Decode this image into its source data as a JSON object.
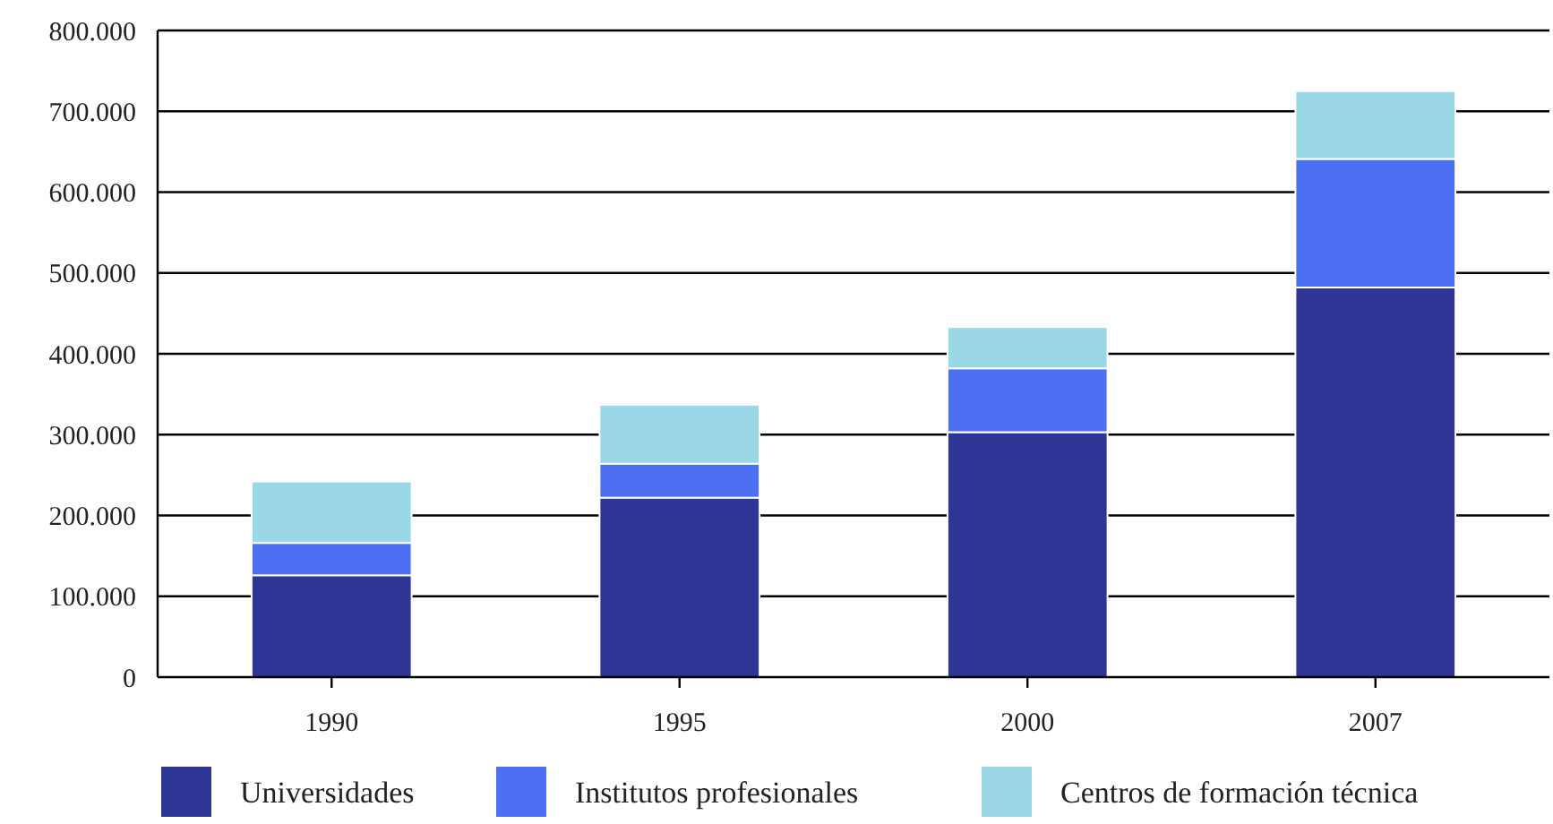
{
  "chart_data": {
    "type": "bar",
    "stacked": true,
    "categories": [
      "1990",
      "1995",
      "2000",
      "2007"
    ],
    "series": [
      {
        "name": "Universidades",
        "color": "#2e3594",
        "values": [
          126000,
          222000,
          303000,
          482000
        ]
      },
      {
        "name": "Institutos profesionales",
        "color": "#4d6ff2",
        "values": [
          40000,
          42000,
          79000,
          159000
        ]
      },
      {
        "name": "Centros de formación técnica",
        "color": "#9ad8e8",
        "values": [
          76000,
          73000,
          51000,
          84000
        ]
      }
    ],
    "ylim": [
      0,
      800000
    ],
    "yticks": [
      {
        "value": 0,
        "label": "0"
      },
      {
        "value": 100000,
        "label": "100.000"
      },
      {
        "value": 200000,
        "label": "200.000"
      },
      {
        "value": 300000,
        "label": "300.000"
      },
      {
        "value": 400000,
        "label": "400.000"
      },
      {
        "value": 500000,
        "label": "500.000"
      },
      {
        "value": 600000,
        "label": "600.000"
      },
      {
        "value": 700000,
        "label": "700.000"
      },
      {
        "value": 800000,
        "label": "800.000"
      }
    ],
    "grid": "y",
    "legend": "bottom"
  }
}
